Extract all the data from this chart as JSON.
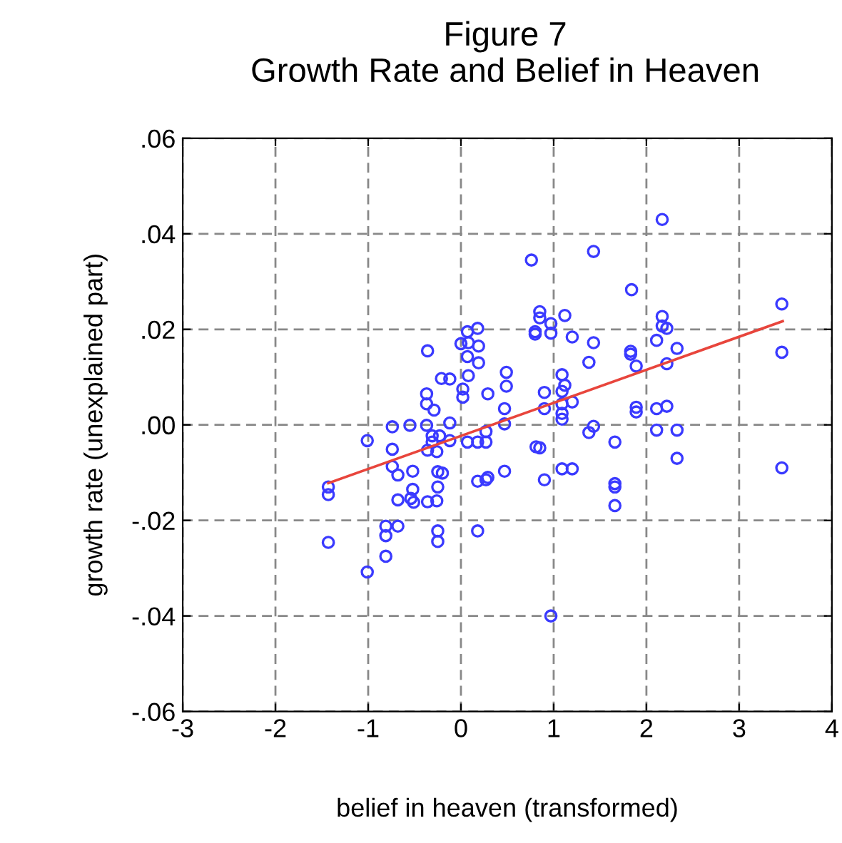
{
  "chart_data": {
    "type": "scatter",
    "title": "Figure 7\nGrowth Rate and Belief in Heaven",
    "xlabel": "belief in heaven (transformed)",
    "ylabel": "growth rate (unexplained part)",
    "xlim": [
      -3,
      4
    ],
    "xticks": [
      -3,
      -2,
      -1,
      0,
      1,
      2,
      3,
      4
    ],
    "ylim": [
      -0.06,
      0.06
    ],
    "yticks": [
      {
        "value": -0.06,
        "label": "-.06"
      },
      {
        "value": -0.04,
        "label": "-.04"
      },
      {
        "value": -0.02,
        "label": "-.02"
      },
      {
        "value": 0,
        "label": ".00"
      },
      {
        "value": 0.02,
        "label": ".02"
      },
      {
        "value": 0.04,
        "label": ".04"
      },
      {
        "value": 0.06,
        "label": ".06"
      }
    ],
    "grid": true,
    "legend": false,
    "series": [
      {
        "type": "scatter",
        "marker": "circle",
        "color": "#3a3aff",
        "x": [
          0.76,
          -0.36,
          0.07,
          0.18,
          0.0,
          0.08,
          0.19,
          0.07,
          0.19,
          -0.21,
          -0.12,
          0.08,
          0.49,
          0.49,
          0.02,
          0.02,
          -0.37,
          -0.37,
          -0.29,
          0.29,
          0.47,
          0.47,
          -0.12,
          -0.74,
          -0.55,
          -0.37,
          -1.01,
          -0.74,
          -0.31,
          -0.23,
          -0.31,
          -0.12,
          -0.36,
          -0.26,
          0.07,
          0.18,
          0.27,
          0.27,
          -0.74,
          -0.68,
          -0.52,
          -0.25,
          -0.2,
          0.47,
          0.81,
          -1.43,
          -1.43,
          0.18,
          0.27,
          0.29,
          -0.52,
          -0.25,
          -0.68,
          -0.54,
          -0.51,
          -0.36,
          -0.26,
          -0.81,
          -0.68,
          -0.81,
          -0.25,
          -0.25,
          0.18,
          -1.43,
          -0.81,
          -1.01,
          2.17,
          1.43,
          1.84,
          3.46,
          0.85,
          0.85,
          0.97,
          1.12,
          0.8,
          0.8,
          0.97,
          1.2,
          1.43,
          2.17,
          2.17,
          2.22,
          2.11,
          2.33,
          1.83,
          1.83,
          1.38,
          1.89,
          2.22,
          3.46,
          1.09,
          1.12,
          1.09,
          0.9,
          1.2,
          1.09,
          0.9,
          1.09,
          1.09,
          1.89,
          1.89,
          2.11,
          2.22,
          1.43,
          1.38,
          1.66,
          2.11,
          2.33,
          0.85,
          2.33,
          1.09,
          1.2,
          3.46,
          0.9,
          1.66,
          1.66,
          1.66,
          0.97
        ],
        "values": [
          0.0345,
          0.0155,
          0.0195,
          0.0202,
          0.017,
          0.0172,
          0.0165,
          0.0143,
          0.013,
          0.0097,
          0.0096,
          0.0103,
          0.011,
          0.0081,
          0.0075,
          0.0058,
          0.0065,
          0.0044,
          0.0031,
          0.0065,
          0.0034,
          0.0002,
          0.0004,
          -0.0004,
          -0.0001,
          -0.0001,
          -0.0033,
          -0.0051,
          -0.0023,
          -0.0023,
          -0.0036,
          -0.0033,
          -0.0053,
          -0.0056,
          -0.0036,
          -0.0036,
          -0.0036,
          -0.0014,
          -0.0087,
          -0.0105,
          -0.0097,
          -0.0098,
          -0.0101,
          -0.0097,
          -0.0046,
          -0.013,
          -0.0146,
          -0.0118,
          -0.0115,
          -0.011,
          -0.0135,
          -0.013,
          -0.0157,
          -0.0154,
          -0.0162,
          -0.0161,
          -0.0159,
          -0.0212,
          -0.0212,
          -0.0232,
          -0.0222,
          -0.0244,
          -0.0222,
          -0.0246,
          -0.0275,
          -0.0308,
          0.043,
          0.0363,
          0.0283,
          0.0253,
          0.0237,
          0.0224,
          0.0212,
          0.0229,
          0.0195,
          0.019,
          0.0192,
          0.0184,
          0.0172,
          0.0227,
          0.0207,
          0.0202,
          0.0177,
          0.016,
          0.0154,
          0.0148,
          0.0131,
          0.0123,
          0.0128,
          0.0152,
          0.0105,
          0.0083,
          0.007,
          0.0068,
          0.0048,
          0.0044,
          0.0034,
          0.0024,
          0.0012,
          0.0037,
          0.0027,
          0.0034,
          0.0039,
          -0.0003,
          -0.0016,
          -0.0036,
          -0.0011,
          -0.0011,
          -0.0048,
          -0.007,
          -0.0092,
          -0.0092,
          -0.009,
          -0.0115,
          -0.0123,
          -0.013,
          -0.0169,
          -0.04
        ]
      },
      {
        "type": "line",
        "marker": "none",
        "line_style": "solid",
        "color": "#e8453c",
        "x": [
          -1.43,
          3.47
        ],
        "values": [
          -0.0122,
          0.0217
        ]
      }
    ]
  }
}
